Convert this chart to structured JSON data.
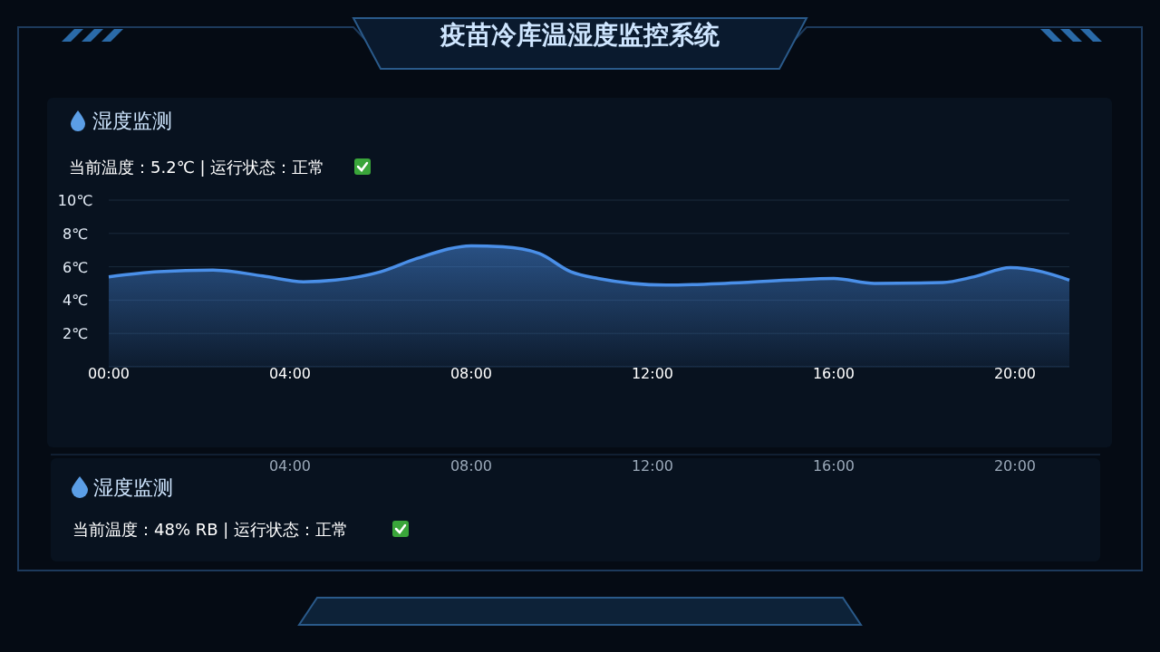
{
  "chart_data": {
    "type": "area",
    "title": "疫苗冷库温湿度监控系统",
    "subtitle": "湿度监测",
    "x": [
      0,
      1.1,
      2.3,
      3.4,
      4.3,
      5.0,
      6.0,
      6.8,
      8.0,
      8.7,
      9.5,
      10.2,
      10.8,
      12.3,
      13.6,
      15.0,
      16.0,
      16.9,
      18.4,
      19.1,
      19.9,
      20.6,
      21.2
    ],
    "series": [
      {
        "color": "#4a8fe8",
        "values": [
          5.4,
          5.7,
          5.8,
          5.45,
          5.1,
          5.2,
          5.7,
          6.5,
          7.25,
          7.2,
          6.8,
          5.7,
          5.3,
          4.9,
          5.0,
          5.2,
          5.3,
          5.0,
          5.05,
          5.4,
          5.95,
          5.7,
          5.2
        ]
      }
    ],
    "xlim": [
      0,
      21.2
    ],
    "xticks": [
      {
        "value": 0,
        "label": "00:00"
      },
      {
        "value": 4,
        "label": "04:00"
      },
      {
        "value": 8,
        "label": "08:00"
      },
      {
        "value": 12,
        "label": "12:00"
      },
      {
        "value": 16,
        "label": "16:00"
      },
      {
        "value": 20,
        "label": "20:00"
      }
    ],
    "x2lim": [
      -1.28,
      21.88
    ],
    "x2ticks": [
      {
        "value": 4,
        "label": "04:00"
      },
      {
        "value": 8,
        "label": "08:00"
      },
      {
        "value": 12,
        "label": "12:00"
      },
      {
        "value": 16,
        "label": "16:00"
      },
      {
        "value": 20,
        "label": "20:00"
      }
    ],
    "ylim": [
      0,
      10
    ],
    "yticks": [
      {
        "value": 2,
        "label": "2℃"
      },
      {
        "value": 4,
        "label": "4℃"
      },
      {
        "value": 6,
        "label": "6℃"
      },
      {
        "value": 8,
        "label": "8℃"
      },
      {
        "value": 10,
        "label": "10℃"
      }
    ],
    "grid": "y",
    "marker": "none",
    "line_style": "solid",
    "annotations": [
      "当前温度：5.2℃ | 运行状态：正常",
      "湿度监测",
      "当前温度：48% RB | 运行状态：正常"
    ]
  }
}
